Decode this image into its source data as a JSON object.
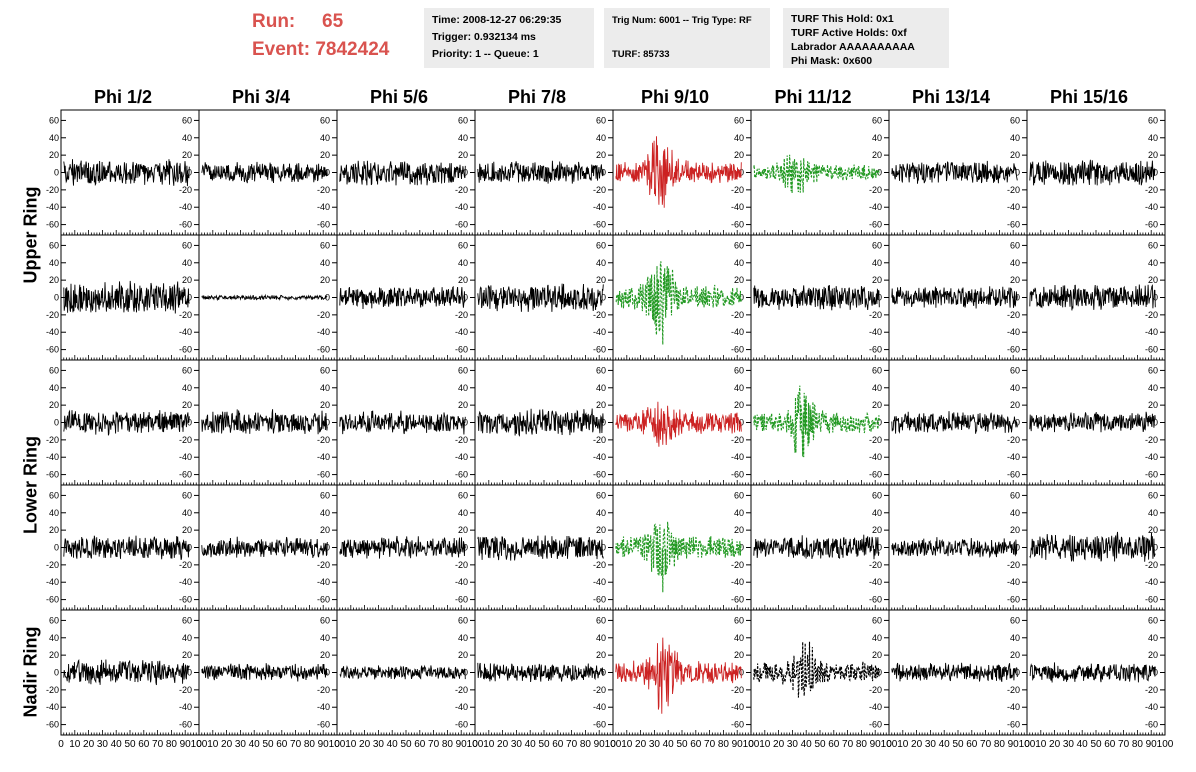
{
  "header": {
    "run_label": "Run:",
    "run_value": "65",
    "event_label": "Event:",
    "event_value": "7842424"
  },
  "info_boxes": {
    "time_box": {
      "time": "Time: 2008-12-27 06:29:35",
      "trigger": "Trigger: 0.932134 ms",
      "priority": "Priority: 1 -- Queue: 1"
    },
    "trig_box": {
      "trig": "Trig Num: 6001 -- Trig Type: RF",
      "turf": "TURF: 85733"
    },
    "turf_box": {
      "this_hold": "TURF This Hold: 0x1",
      "active_holds": "TURF Active Holds: 0xf",
      "labrador": "Labrador AAAAAAAAAA",
      "phi_mask": "Phi Mask: 0x600"
    }
  },
  "columns": [
    "Phi 1/2",
    "Phi 3/4",
    "Phi 5/6",
    "Phi 7/8",
    "Phi 9/10",
    "Phi 11/12",
    "Phi 13/14",
    "Phi 15/16"
  ],
  "rows": [
    "Upper Ring",
    "Lower Ring",
    "Nadir Ring"
  ],
  "colors": {
    "normal": "#000000",
    "red": "#cc2222",
    "green": "#229922",
    "black_dashed": "#000000"
  },
  "chart_data": {
    "type": "line",
    "panel_grid": {
      "rows": 5,
      "columns": 8
    },
    "row_groups": [
      {
        "label": "Upper Ring",
        "panel_rows": [
          1,
          2
        ]
      },
      {
        "label": "Lower Ring",
        "panel_rows": [
          3,
          4
        ]
      },
      {
        "label": "Nadir Ring",
        "panel_rows": [
          5
        ]
      }
    ],
    "xlim": [
      0,
      100
    ],
    "ylim": [
      -72,
      72
    ],
    "y_ticks": [
      -60,
      -40,
      -20,
      0,
      20,
      40,
      60
    ],
    "x_ticks": [
      0,
      10,
      20,
      30,
      40,
      50,
      60,
      70,
      80,
      90,
      100
    ],
    "x_tick_labels": [
      "0",
      "10",
      "20",
      "30",
      "40",
      "50",
      "60",
      "70",
      "80",
      "90",
      "100"
    ],
    "samples_per_trace": 260,
    "panels": [
      [
        {
          "style": "normal",
          "amp": 17,
          "peak_x": 0,
          "peak_gain": 0
        },
        {
          "style": "normal",
          "amp": 13,
          "peak_x": 0,
          "peak_gain": 0
        },
        {
          "style": "normal",
          "amp": 16,
          "peak_x": 0,
          "peak_gain": 0
        },
        {
          "style": "normal",
          "amp": 14,
          "peak_x": 0,
          "peak_gain": 0
        },
        {
          "style": "red",
          "amp": 14,
          "peak_x": 34,
          "peak_gain": 2.6
        },
        {
          "style": "green",
          "amp": 11,
          "peak_x": 32,
          "peak_gain": 2.0
        },
        {
          "style": "normal",
          "amp": 14,
          "peak_x": 0,
          "peak_gain": 0
        },
        {
          "style": "normal",
          "amp": 16,
          "peak_x": 0,
          "peak_gain": 0
        }
      ],
      [
        {
          "style": "normal",
          "amp": 20,
          "peak_x": 0,
          "peak_gain": 0
        },
        {
          "style": "normal",
          "amp": 3,
          "peak_x": 0,
          "peak_gain": 0
        },
        {
          "style": "normal",
          "amp": 14,
          "peak_x": 0,
          "peak_gain": 0
        },
        {
          "style": "normal",
          "amp": 18,
          "peak_x": 0,
          "peak_gain": 0
        },
        {
          "style": "green",
          "amp": 15,
          "peak_x": 35,
          "peak_gain": 3.2
        },
        {
          "style": "normal",
          "amp": 16,
          "peak_x": 0,
          "peak_gain": 0
        },
        {
          "style": "normal",
          "amp": 14,
          "peak_x": 0,
          "peak_gain": 0
        },
        {
          "style": "normal",
          "amp": 17,
          "peak_x": 0,
          "peak_gain": 0
        }
      ],
      [
        {
          "style": "normal",
          "amp": 15,
          "peak_x": 0,
          "peak_gain": 0
        },
        {
          "style": "normal",
          "amp": 16,
          "peak_x": 0,
          "peak_gain": 0
        },
        {
          "style": "normal",
          "amp": 14,
          "peak_x": 0,
          "peak_gain": 0
        },
        {
          "style": "normal",
          "amp": 17,
          "peak_x": 0,
          "peak_gain": 0
        },
        {
          "style": "red",
          "amp": 14,
          "peak_x": 35,
          "peak_gain": 1.6
        },
        {
          "style": "green",
          "amp": 13,
          "peak_x": 38,
          "peak_gain": 2.8
        },
        {
          "style": "normal",
          "amp": 14,
          "peak_x": 0,
          "peak_gain": 0
        },
        {
          "style": "normal",
          "amp": 13,
          "peak_x": 0,
          "peak_gain": 0
        }
      ],
      [
        {
          "style": "normal",
          "amp": 15,
          "peak_x": 0,
          "peak_gain": 0
        },
        {
          "style": "normal",
          "amp": 13,
          "peak_x": 0,
          "peak_gain": 0
        },
        {
          "style": "normal",
          "amp": 14,
          "peak_x": 0,
          "peak_gain": 0
        },
        {
          "style": "normal",
          "amp": 16,
          "peak_x": 0,
          "peak_gain": 0
        },
        {
          "style": "green",
          "amp": 14,
          "peak_x": 34,
          "peak_gain": 2.9
        },
        {
          "style": "normal",
          "amp": 15,
          "peak_x": 0,
          "peak_gain": 0
        },
        {
          "style": "normal",
          "amp": 13,
          "peak_x": 0,
          "peak_gain": 0
        },
        {
          "style": "normal",
          "amp": 18,
          "peak_x": 0,
          "peak_gain": 0
        }
      ],
      [
        {
          "style": "normal",
          "amp": 16,
          "peak_x": 0,
          "peak_gain": 0
        },
        {
          "style": "normal",
          "amp": 11,
          "peak_x": 0,
          "peak_gain": 0
        },
        {
          "style": "normal",
          "amp": 9,
          "peak_x": 0,
          "peak_gain": 0
        },
        {
          "style": "normal",
          "amp": 13,
          "peak_x": 0,
          "peak_gain": 0
        },
        {
          "style": "red",
          "amp": 14,
          "peak_x": 37,
          "peak_gain": 2.8
        },
        {
          "style": "black_dashed",
          "amp": 13,
          "peak_x": 38,
          "peak_gain": 2.6
        },
        {
          "style": "normal",
          "amp": 12,
          "peak_x": 0,
          "peak_gain": 0
        },
        {
          "style": "normal",
          "amp": 12,
          "peak_x": 0,
          "peak_gain": 0
        }
      ]
    ]
  }
}
